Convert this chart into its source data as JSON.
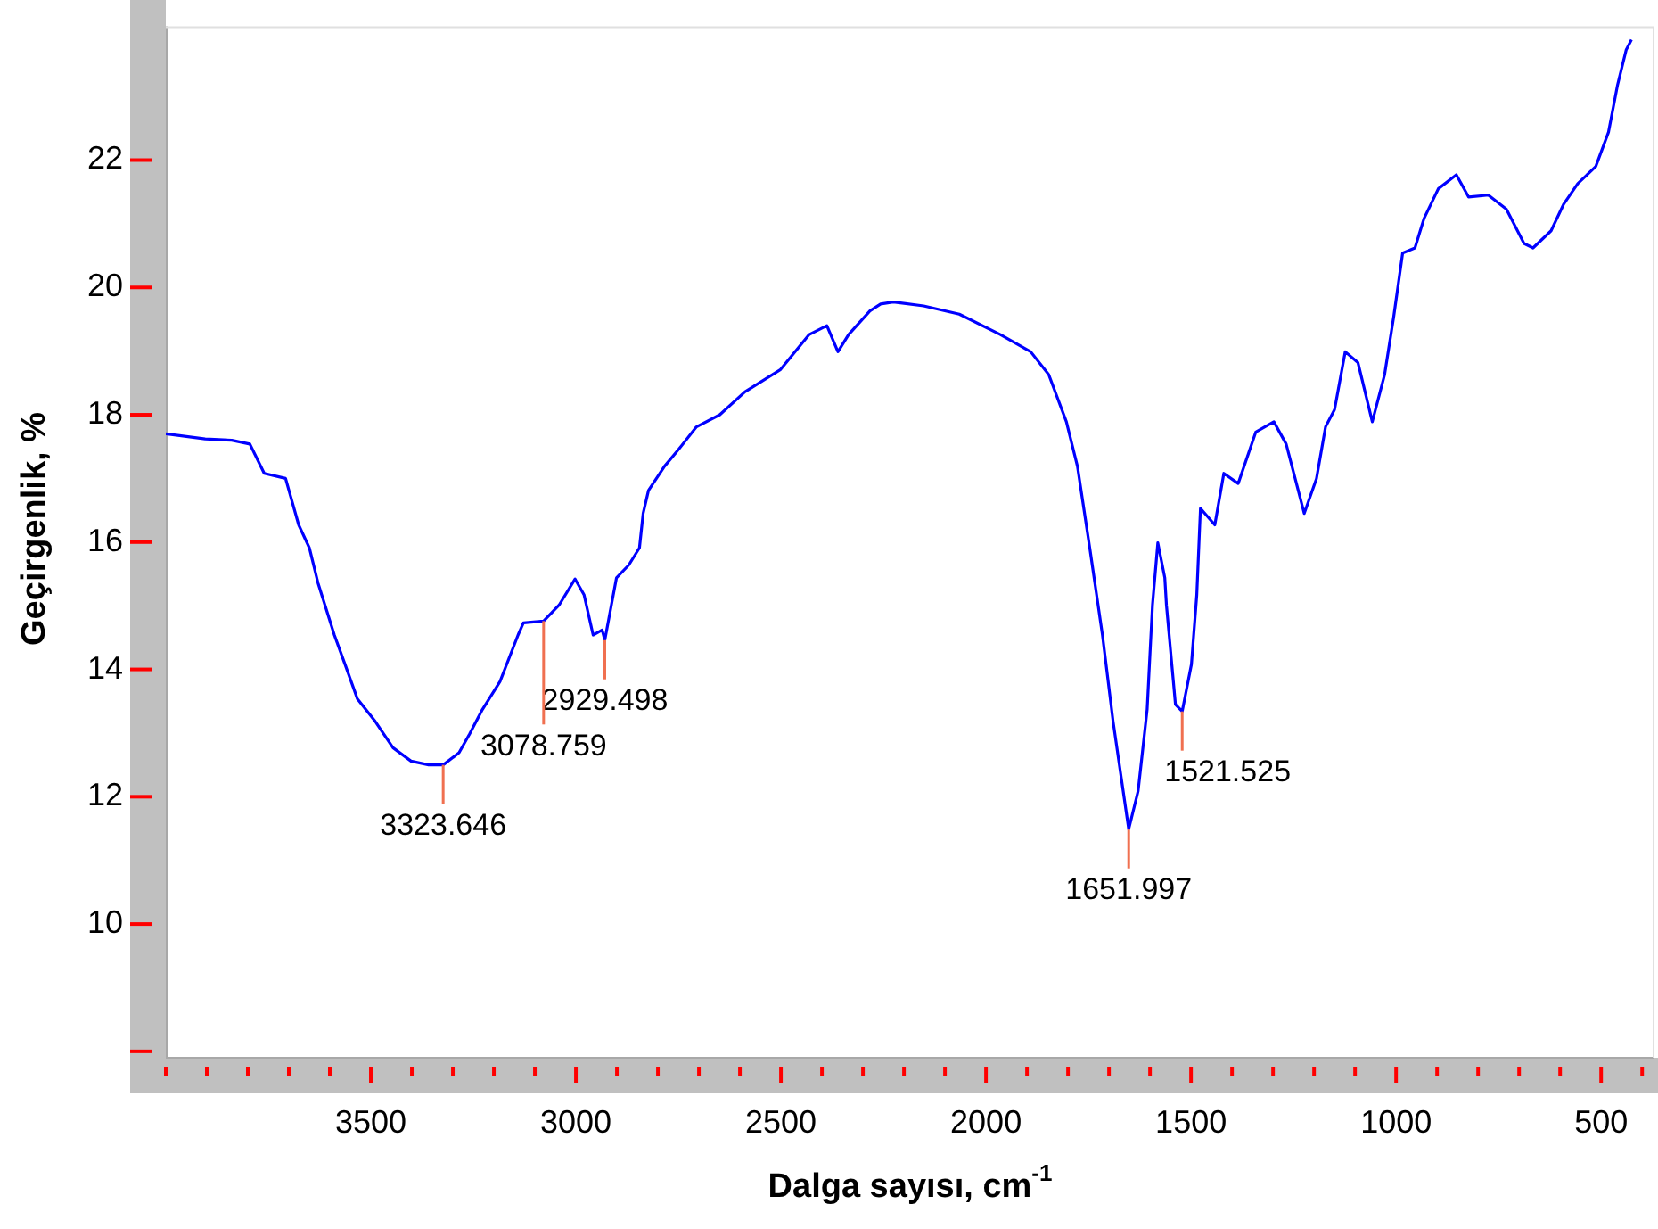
{
  "chart_data": {
    "type": "line",
    "xlabel": "Dalga sayısı, cm$^{-1}$",
    "ylabel": "Geçirgenlik, %",
    "x": [
      4000,
      3904,
      3839,
      3795,
      3760,
      3708,
      3676,
      3650,
      3629,
      3589,
      3563,
      3533,
      3489,
      3446,
      3402,
      3359,
      3323.646,
      3285,
      3259,
      3228,
      3185,
      3141,
      3128,
      3078.759,
      3041,
      3002,
      2980,
      2958,
      2936,
      2929.498,
      2901,
      2871,
      2845,
      2836,
      2823,
      2784,
      2749,
      2706,
      2649,
      2588,
      2501,
      2431,
      2388,
      2361,
      2335,
      2283,
      2257,
      2226,
      2152,
      2065,
      1965,
      1891,
      1847,
      1804,
      1777,
      1747,
      1716,
      1690,
      1651.997,
      1629,
      1607,
      1594,
      1581,
      1564,
      1560,
      1538,
      1521.525,
      1499,
      1486,
      1477,
      1442,
      1420,
      1385,
      1342,
      1298,
      1268,
      1224,
      1194,
      1172,
      1150,
      1124,
      1093,
      1058,
      1028,
      1006,
      984,
      954,
      932,
      897,
      853,
      823,
      775,
      731,
      688,
      666,
      622,
      592,
      557,
      513,
      482,
      460,
      439,
      426
    ],
    "values": [
      17.7,
      17.62,
      17.6,
      17.54,
      17.08,
      17.0,
      16.27,
      15.91,
      15.36,
      14.54,
      14.08,
      13.54,
      13.18,
      12.77,
      12.56,
      12.5,
      12.5,
      12.69,
      12.99,
      13.37,
      13.81,
      14.54,
      14.73,
      14.76,
      15.01,
      15.42,
      15.17,
      14.54,
      14.62,
      14.46,
      15.44,
      15.64,
      15.91,
      16.45,
      16.81,
      17.19,
      17.46,
      17.81,
      18.0,
      18.36,
      18.71,
      19.26,
      19.4,
      18.99,
      19.26,
      19.63,
      19.74,
      19.77,
      19.71,
      19.58,
      19.26,
      18.99,
      18.63,
      17.89,
      17.19,
      15.91,
      14.54,
      13.18,
      11.49,
      12.09,
      13.37,
      15.01,
      15.99,
      15.44,
      15.01,
      13.45,
      13.34,
      14.08,
      15.17,
      16.53,
      16.27,
      17.08,
      16.92,
      17.73,
      17.89,
      17.54,
      16.45,
      17.0,
      17.81,
      18.08,
      18.99,
      18.82,
      17.89,
      18.63,
      19.53,
      20.54,
      20.62,
      21.08,
      21.55,
      21.77,
      21.42,
      21.45,
      21.23,
      20.69,
      20.62,
      20.89,
      21.3,
      21.63,
      21.9,
      22.44,
      23.18,
      23.73,
      23.89
    ],
    "color": "#0000ff",
    "marker": "none",
    "line_style": "solid",
    "grid": false,
    "legend": false,
    "xlim": [
      4000,
      370
    ],
    "xticks": [
      {
        "value": 4000,
        "label": null
      },
      {
        "value": 3900,
        "label": null
      },
      {
        "value": 3800,
        "label": null
      },
      {
        "value": 3700,
        "label": null
      },
      {
        "value": 3600,
        "label": null
      },
      3500,
      {
        "value": 3400,
        "label": null
      },
      {
        "value": 3300,
        "label": null
      },
      {
        "value": 3200,
        "label": null
      },
      {
        "value": 3100,
        "label": null
      },
      3000,
      {
        "value": 2900,
        "label": null
      },
      {
        "value": 2800,
        "label": null
      },
      {
        "value": 2700,
        "label": null
      },
      {
        "value": 2600,
        "label": null
      },
      2500,
      {
        "value": 2400,
        "label": null
      },
      {
        "value": 2300,
        "label": null
      },
      {
        "value": 2200,
        "label": null
      },
      {
        "value": 2100,
        "label": null
      },
      2000,
      {
        "value": 1900,
        "label": null
      },
      {
        "value": 1800,
        "label": null
      },
      {
        "value": 1700,
        "label": null
      },
      {
        "value": 1600,
        "label": null
      },
      1500,
      {
        "value": 1400,
        "label": null
      },
      {
        "value": 1300,
        "label": null
      },
      {
        "value": 1200,
        "label": null
      },
      {
        "value": 1100,
        "label": null
      },
      1000,
      {
        "value": 900,
        "label": null
      },
      {
        "value": 800,
        "label": null
      },
      {
        "value": 700,
        "label": null
      },
      {
        "value": 600,
        "label": null
      },
      500,
      {
        "value": 400,
        "label": null
      }
    ],
    "ylim": [
      7.9,
      24.1
    ],
    "yticks": [
      {
        "value": 8,
        "label": null
      },
      10,
      12,
      14,
      16,
      18,
      20,
      22
    ],
    "annotations": [
      {
        "text": "3323.646",
        "x": 3323.646,
        "y": 12.5
      },
      {
        "text": "2929.498",
        "x": 2929.498,
        "y": 14.46
      },
      {
        "text": "3078.759",
        "x": 3078.759,
        "y": 14.76
      },
      {
        "text": "1651.997",
        "x": 1651.997,
        "y": 11.49
      },
      {
        "text": "1521.525",
        "x": 1521.525,
        "y": 13.34
      }
    ]
  }
}
